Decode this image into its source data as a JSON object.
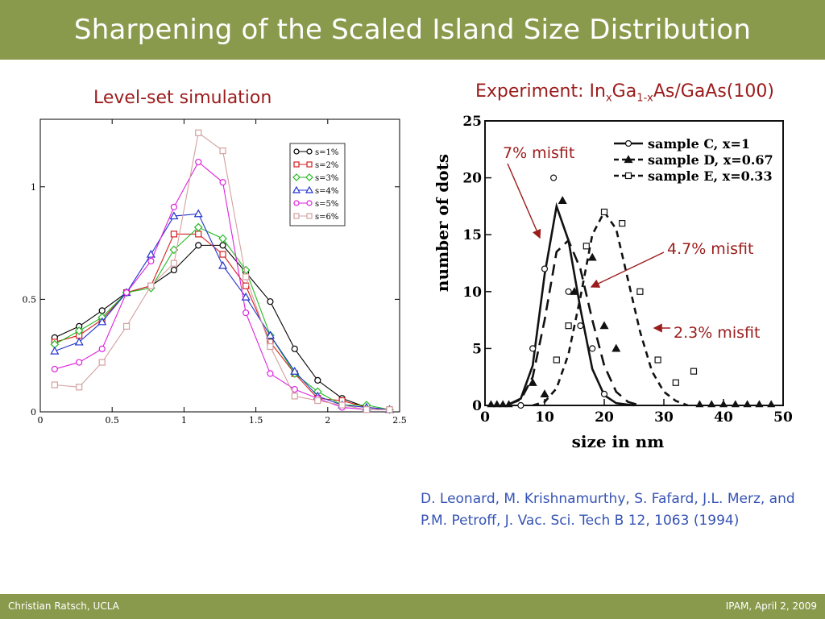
{
  "slide": {
    "title": "Sharpening of the Scaled Island Size Distribution",
    "left_caption": "Level-set simulation",
    "right_caption": {
      "prefix": "Experiment: In",
      "sub1": "x",
      "mid": "Ga",
      "sub2": "1-x",
      "suffix": "As/GaAs(100)"
    },
    "citation_line1": "D. Leonard, M. Krishnamurthy, S. Fafard, J.L. Merz, and",
    "citation_line2": "P.M. Petroff, J. Vac. Sci. Tech B 12, 1063 (1994)",
    "footer_left": "Christian Ratsch, UCLA",
    "footer_right": "IPAM, April 2, 2009",
    "colors": {
      "bar": "#8a9a4d",
      "caption": "#9b1c1c",
      "citation": "#3553b5"
    }
  },
  "chart_data": [
    {
      "type": "line",
      "xlim": [
        0,
        2.5
      ],
      "ylim": [
        0,
        1.3
      ],
      "xticks": [
        "0",
        "0.5",
        "1",
        "1.5",
        "2",
        "2.5"
      ],
      "yticks": [
        "0",
        "0.5",
        "1"
      ],
      "legend_position": "top-right",
      "grid": false,
      "x": [
        0.1,
        0.27,
        0.43,
        0.6,
        0.77,
        0.93,
        1.1,
        1.27,
        1.43,
        1.6,
        1.77,
        1.93,
        2.1,
        2.27,
        2.43
      ],
      "series": [
        {
          "name": "s=1%",
          "color": "#000000",
          "marker": "circle",
          "values": [
            0.33,
            0.38,
            0.45,
            0.53,
            0.56,
            0.63,
            0.74,
            0.74,
            0.62,
            0.49,
            0.28,
            0.14,
            0.06,
            0.02,
            0.01
          ]
        },
        {
          "name": "s=2%",
          "color": "#d42020",
          "marker": "square",
          "values": [
            0.31,
            0.34,
            0.41,
            0.53,
            0.56,
            0.79,
            0.79,
            0.7,
            0.56,
            0.31,
            0.17,
            0.06,
            0.05,
            0.02,
            0.01
          ]
        },
        {
          "name": "s=3%",
          "color": "#22bb22",
          "marker": "diamond",
          "values": [
            0.3,
            0.36,
            0.42,
            0.53,
            0.55,
            0.72,
            0.82,
            0.77,
            0.63,
            0.34,
            0.17,
            0.09,
            0.03,
            0.03,
            0.01
          ]
        },
        {
          "name": "s=4%",
          "color": "#2233cc",
          "marker": "triangle",
          "values": [
            0.27,
            0.31,
            0.4,
            0.53,
            0.7,
            0.87,
            0.88,
            0.65,
            0.51,
            0.34,
            0.18,
            0.07,
            0.03,
            0.02,
            0.01
          ]
        },
        {
          "name": "s=5%",
          "color": "#dd22dd",
          "marker": "circle",
          "values": [
            0.19,
            0.22,
            0.28,
            0.53,
            0.67,
            0.91,
            1.11,
            1.02,
            0.44,
            0.17,
            0.1,
            0.06,
            0.02,
            0.01,
            0.01
          ]
        },
        {
          "name": "s=6%",
          "color": "#d4a0a0",
          "marker": "square",
          "values": [
            0.12,
            0.11,
            0.22,
            0.38,
            0.56,
            0.66,
            1.24,
            1.16,
            0.6,
            0.29,
            0.07,
            0.05,
            0.03,
            0.01,
            0.01
          ]
        }
      ]
    },
    {
      "type": "line",
      "xlabel": "size in nm",
      "ylabel": "number of dots",
      "xlim": [
        0,
        50
      ],
      "ylim": [
        0,
        25
      ],
      "xticks": [
        "0",
        "10",
        "20",
        "30",
        "40",
        "50"
      ],
      "yticks": [
        "0",
        "5",
        "10",
        "15",
        "20",
        "25"
      ],
      "legend_position": "top-right",
      "grid": false,
      "series": [
        {
          "name": "sample C, x=1",
          "dash": "solid",
          "marker": "circle",
          "x": [
            4,
            6,
            8,
            10,
            12,
            14,
            16,
            18,
            20,
            22,
            25
          ],
          "values": [
            0.1,
            0.6,
            3.5,
            11.5,
            17.5,
            14.5,
            8.5,
            3.2,
            0.9,
            0.2,
            0.0
          ],
          "points_x": [
            6,
            8,
            10,
            11.5,
            14,
            16,
            18,
            20
          ],
          "points_y": [
            0,
            5,
            12,
            20,
            10,
            7,
            5,
            1
          ]
        },
        {
          "name": "sample D, x=0.67",
          "dash": "long",
          "marker": "triangle",
          "x": [
            4,
            6,
            8,
            10,
            12,
            14,
            16,
            18,
            20,
            22,
            24,
            26
          ],
          "values": [
            0.1,
            0.5,
            2.5,
            7.5,
            13.5,
            14.5,
            12.0,
            7.5,
            3.5,
            1.2,
            0.3,
            0.0
          ],
          "points_x": [
            8,
            10,
            13,
            15,
            18,
            20,
            22
          ],
          "points_y": [
            2,
            1,
            18,
            10,
            13,
            7,
            5
          ]
        },
        {
          "name": "sample E, x=0.33",
          "dash": "short",
          "marker": "square",
          "x": [
            8,
            10,
            12,
            14,
            16,
            18,
            20,
            22,
            24,
            26,
            28,
            30,
            32,
            34
          ],
          "values": [
            0.0,
            0.3,
            1.5,
            4.5,
            9.5,
            15.0,
            17.0,
            15.5,
            11.0,
            6.5,
            3.0,
            1.2,
            0.4,
            0.0
          ],
          "points_x": [
            12,
            14,
            17,
            20,
            23,
            26,
            29,
            32,
            35
          ],
          "points_y": [
            4,
            7,
            14,
            17,
            16,
            10,
            4,
            2,
            3
          ]
        }
      ],
      "annotations": [
        "7% misfit",
        "4.7% misfit",
        "2.3% misfit"
      ]
    }
  ]
}
